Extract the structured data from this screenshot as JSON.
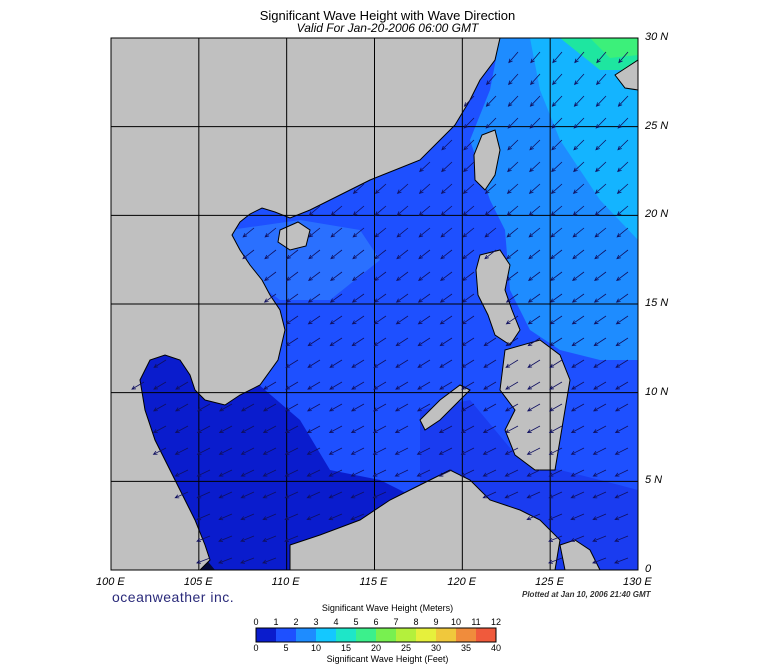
{
  "title": "Significant Wave Height with Wave Direction",
  "subtitle": "Valid For Jan-20-2006 06:00 GMT",
  "lon_labels": [
    "100 E",
    "105 E",
    "110 E",
    "115 E",
    "120 E",
    "125 E",
    "130 E"
  ],
  "lat_labels": [
    "30 N",
    "25 N",
    "20 N",
    "15 N",
    "10 N",
    "5 N",
    "0"
  ],
  "brand": "oceanweather inc.",
  "plotted": "Plotted at Jan 10, 2006 21:40 GMT",
  "colorbar": {
    "meters_title": "Significant Wave Height (Meters)",
    "feet_title": "Significant Wave Height (Feet)",
    "meters_ticks": [
      "0",
      "1",
      "2",
      "3",
      "4",
      "5",
      "6",
      "7",
      "8",
      "9",
      "10",
      "11",
      "12"
    ],
    "feet_ticks": [
      "0",
      "5",
      "10",
      "15",
      "20",
      "25",
      "30",
      "35",
      "40"
    ],
    "colors": [
      "#0a1ccd",
      "#1e50ff",
      "#1e8cff",
      "#14c8ff",
      "#1ee6c8",
      "#3cf08c",
      "#78f050",
      "#b4f03c",
      "#e6f03c",
      "#f0c83c",
      "#f08c3c",
      "#f05a3c"
    ]
  },
  "colors": {
    "land": "#c0c0c0",
    "sea_low": "#0a1ccd",
    "sea_mid": "#1e50ff",
    "sea_high": "#14c8ff",
    "sea_peak": "#1ee6a0",
    "arrow": "#101060"
  }
}
